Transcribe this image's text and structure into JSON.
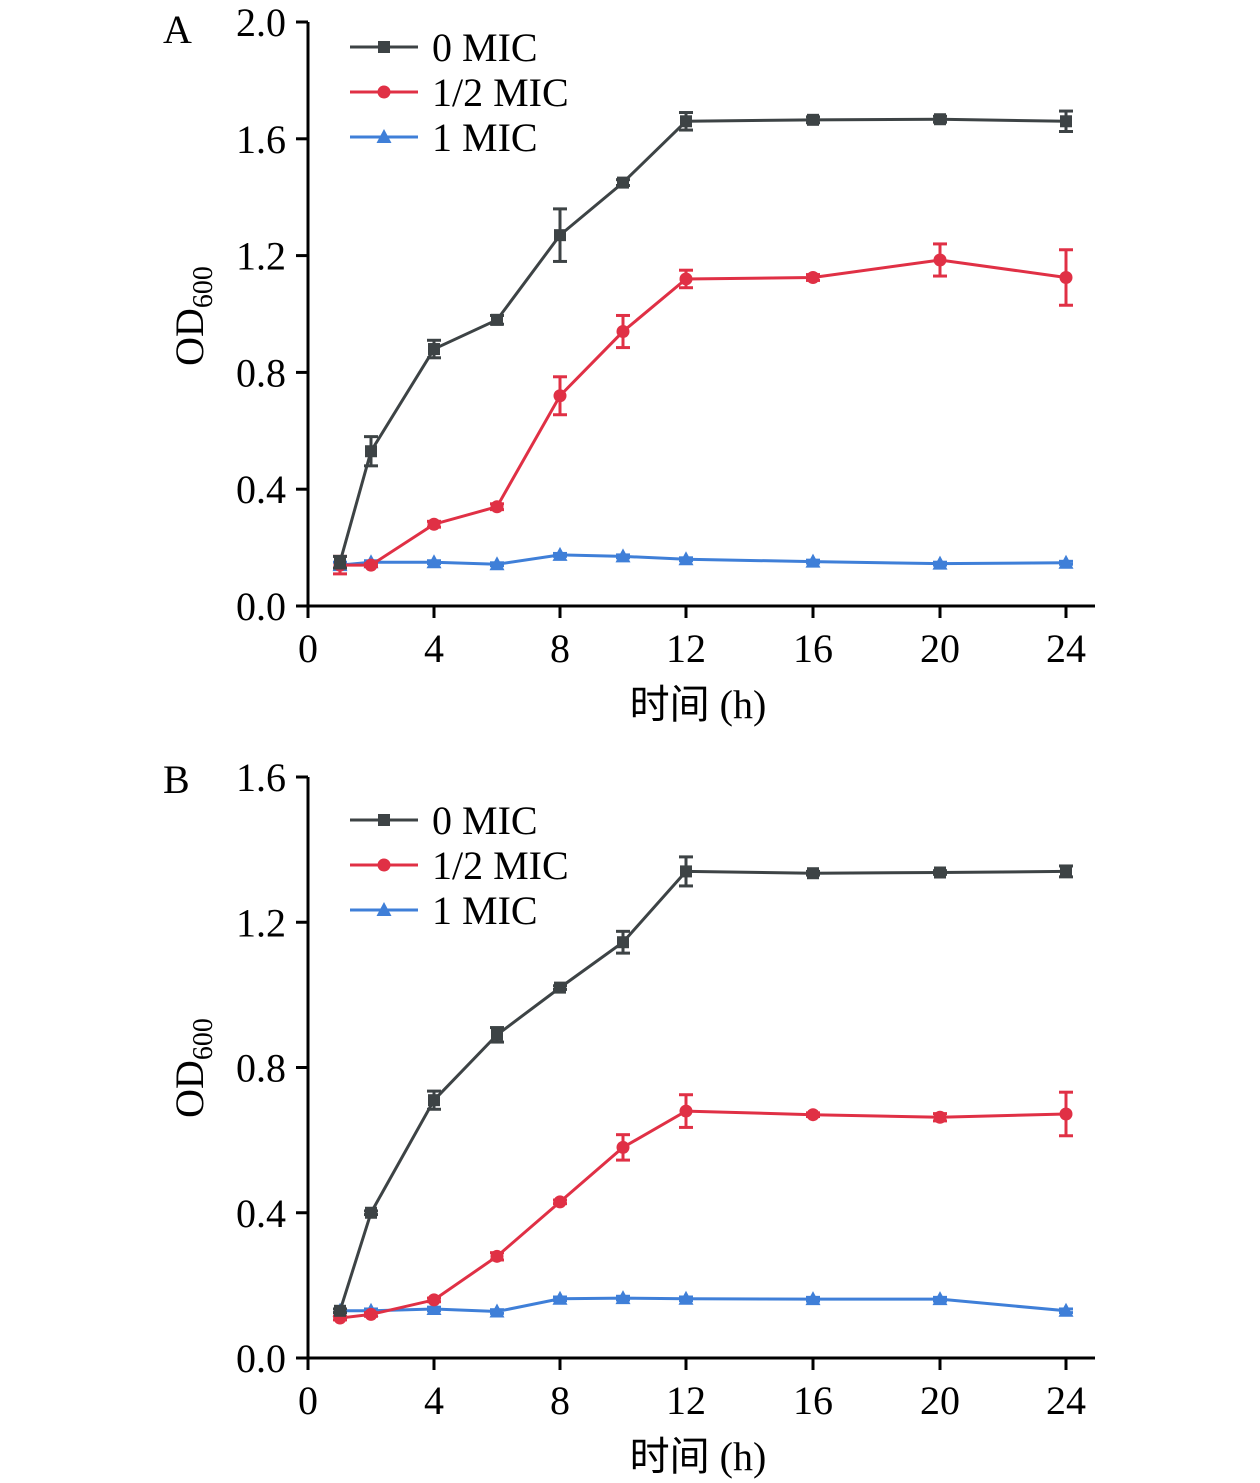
{
  "chart_data": [
    {
      "type": "line",
      "panel": "A",
      "xlabel": "时间 (h)",
      "ylabel": "OD",
      "ylabel_subscript": "600",
      "x_ticks": [
        "0",
        "4",
        "8",
        "12",
        "16",
        "20",
        "24"
      ],
      "y_ticks": [
        "0.0",
        "0.4",
        "0.8",
        "1.2",
        "1.6",
        "2.0"
      ],
      "ylim": [
        0,
        2.0
      ],
      "x_ticks_at": [
        0,
        4,
        8,
        12,
        16,
        20,
        24
      ],
      "y_ticks_at": [
        0,
        0.4,
        0.8,
        1.2,
        1.6,
        2.0
      ],
      "x_category_positions": [
        1,
        2,
        4,
        6,
        8,
        10,
        12,
        16,
        20,
        24
      ],
      "legend_position": "top-left",
      "series": [
        {
          "name": "0 MIC",
          "color": "#3d4345",
          "marker": "square",
          "x": [
            1,
            2,
            4,
            6,
            8,
            10,
            12,
            16,
            20,
            24
          ],
          "values": [
            0.15,
            0.53,
            0.88,
            0.98,
            1.27,
            1.45,
            1.66,
            1.665,
            1.667,
            1.66
          ],
          "errors": [
            0.02,
            0.05,
            0.03,
            0.015,
            0.09,
            0.01,
            0.03,
            0.01,
            0.01,
            0.035
          ]
        },
        {
          "name": "1/2 MIC",
          "color": "#e03045",
          "marker": "circle",
          "x": [
            1,
            2,
            4,
            6,
            8,
            10,
            12,
            16,
            20,
            24
          ],
          "values": [
            0.14,
            0.14,
            0.28,
            0.34,
            0.72,
            0.94,
            1.12,
            1.125,
            1.185,
            1.125
          ],
          "errors": [
            0.03,
            0.005,
            0.01,
            0.01,
            0.065,
            0.055,
            0.03,
            0.01,
            0.055,
            0.095
          ]
        },
        {
          "name": "1 MIC",
          "color": "#3f7fd8",
          "marker": "triangle",
          "x": [
            1,
            2,
            4,
            6,
            8,
            10,
            12,
            16,
            20,
            24
          ],
          "values": [
            0.14,
            0.15,
            0.15,
            0.143,
            0.175,
            0.17,
            0.16,
            0.152,
            0.145,
            0.148
          ],
          "errors": [
            0.01,
            0.005,
            0.005,
            0.005,
            0.005,
            0.005,
            0.005,
            0.005,
            0.005,
            0.005
          ]
        }
      ]
    },
    {
      "type": "line",
      "panel": "B",
      "xlabel": "时间 (h)",
      "ylabel": "OD",
      "ylabel_subscript": "600",
      "x_ticks": [
        "0",
        "4",
        "8",
        "12",
        "16",
        "20",
        "24"
      ],
      "y_ticks": [
        "0.0",
        "0.4",
        "0.8",
        "1.2",
        "1.6"
      ],
      "ylim": [
        0,
        1.6
      ],
      "x_ticks_at": [
        0,
        4,
        8,
        12,
        16,
        20,
        24
      ],
      "y_ticks_at": [
        0,
        0.4,
        0.8,
        1.2,
        1.6
      ],
      "x_category_positions": [
        1,
        2,
        4,
        6,
        8,
        10,
        12,
        16,
        20,
        24
      ],
      "legend_position": "top-left",
      "series": [
        {
          "name": "0 MIC",
          "color": "#3d4345",
          "marker": "square",
          "x": [
            1,
            2,
            4,
            6,
            8,
            10,
            12,
            16,
            20,
            24
          ],
          "values": [
            0.13,
            0.4,
            0.71,
            0.89,
            1.02,
            1.145,
            1.34,
            1.335,
            1.337,
            1.34
          ],
          "errors": [
            0.005,
            0.005,
            0.025,
            0.02,
            0.005,
            0.03,
            0.04,
            0.005,
            0.005,
            0.015
          ]
        },
        {
          "name": "1/2 MIC",
          "color": "#e03045",
          "marker": "circle",
          "x": [
            1,
            2,
            4,
            6,
            8,
            10,
            12,
            16,
            20,
            24
          ],
          "values": [
            0.11,
            0.12,
            0.16,
            0.28,
            0.43,
            0.58,
            0.68,
            0.67,
            0.663,
            0.672
          ],
          "errors": [
            0.005,
            0.005,
            0.005,
            0.01,
            0.005,
            0.035,
            0.045,
            0.005,
            0.01,
            0.06
          ]
        },
        {
          "name": "1 MIC",
          "color": "#3f7fd8",
          "marker": "triangle",
          "x": [
            1,
            2,
            4,
            6,
            8,
            10,
            12,
            16,
            20,
            24
          ],
          "values": [
            0.13,
            0.13,
            0.135,
            0.128,
            0.163,
            0.165,
            0.163,
            0.162,
            0.162,
            0.13
          ],
          "errors": [
            0.005,
            0.005,
            0.005,
            0.005,
            0.005,
            0.005,
            0.005,
            0.005,
            0.005,
            0.005
          ]
        }
      ]
    }
  ]
}
